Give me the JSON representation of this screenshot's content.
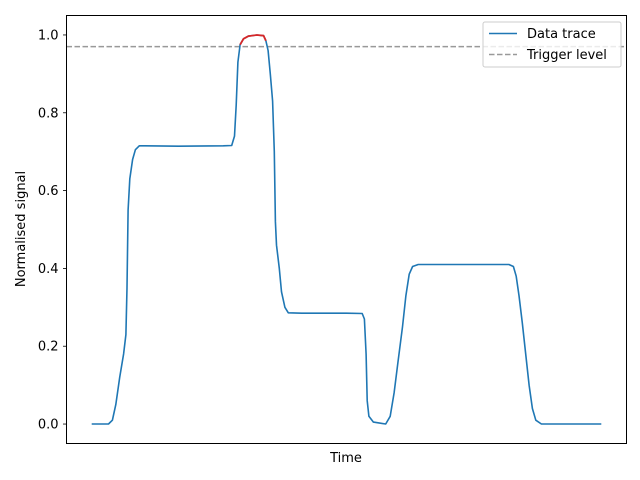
{
  "chart_data": {
    "type": "line",
    "xlabel": "Time",
    "ylabel": "Normalised signal",
    "xlim": [
      0,
      1
    ],
    "ylim": [
      -0.05,
      1.05
    ],
    "x_ticks_shown": false,
    "y_ticks": [
      0.0,
      0.2,
      0.4,
      0.6,
      0.8,
      1.0
    ],
    "y_tick_labels": [
      "0.0",
      "0.2",
      "0.4",
      "0.6",
      "0.8",
      "1.0"
    ],
    "grid": false,
    "legend_position": "top-right",
    "trigger_level": 0.97,
    "series": [
      {
        "name": "Data trace",
        "color": "#1f77b4",
        "points": [
          [
            0.045,
            0.0
          ],
          [
            0.075,
            0.0
          ],
          [
            0.082,
            0.01
          ],
          [
            0.088,
            0.05
          ],
          [
            0.095,
            0.12
          ],
          [
            0.102,
            0.18
          ],
          [
            0.106,
            0.23
          ],
          [
            0.108,
            0.35
          ],
          [
            0.11,
            0.55
          ],
          [
            0.113,
            0.63
          ],
          [
            0.118,
            0.68
          ],
          [
            0.123,
            0.705
          ],
          [
            0.13,
            0.715
          ],
          [
            0.14,
            0.715
          ],
          [
            0.2,
            0.714
          ],
          [
            0.28,
            0.715
          ],
          [
            0.295,
            0.716
          ],
          [
            0.3,
            0.74
          ],
          [
            0.303,
            0.82
          ],
          [
            0.306,
            0.93
          ],
          [
            0.31,
            0.975
          ],
          [
            0.316,
            0.99
          ],
          [
            0.325,
            0.997
          ],
          [
            0.34,
            1.0
          ],
          [
            0.352,
            0.998
          ],
          [
            0.356,
            0.985
          ],
          [
            0.36,
            0.96
          ],
          [
            0.364,
            0.9
          ],
          [
            0.368,
            0.83
          ],
          [
            0.371,
            0.7
          ],
          [
            0.373,
            0.52
          ],
          [
            0.375,
            0.46
          ],
          [
            0.38,
            0.4
          ],
          [
            0.384,
            0.34
          ],
          [
            0.39,
            0.3
          ],
          [
            0.396,
            0.286
          ],
          [
            0.42,
            0.285
          ],
          [
            0.5,
            0.285
          ],
          [
            0.528,
            0.284
          ],
          [
            0.532,
            0.27
          ],
          [
            0.535,
            0.18
          ],
          [
            0.537,
            0.06
          ],
          [
            0.54,
            0.02
          ],
          [
            0.548,
            0.005
          ],
          [
            0.57,
            0.0
          ],
          [
            0.578,
            0.02
          ],
          [
            0.585,
            0.08
          ],
          [
            0.592,
            0.16
          ],
          [
            0.6,
            0.25
          ],
          [
            0.606,
            0.33
          ],
          [
            0.612,
            0.385
          ],
          [
            0.618,
            0.405
          ],
          [
            0.628,
            0.41
          ],
          [
            0.7,
            0.41
          ],
          [
            0.79,
            0.41
          ],
          [
            0.798,
            0.405
          ],
          [
            0.803,
            0.38
          ],
          [
            0.808,
            0.33
          ],
          [
            0.814,
            0.26
          ],
          [
            0.82,
            0.18
          ],
          [
            0.826,
            0.1
          ],
          [
            0.832,
            0.04
          ],
          [
            0.838,
            0.01
          ],
          [
            0.848,
            0.0
          ],
          [
            0.955,
            0.0
          ]
        ]
      }
    ],
    "highlight": {
      "color": "#d62728",
      "points": [
        [
          0.31,
          0.975
        ],
        [
          0.316,
          0.99
        ],
        [
          0.325,
          0.997
        ],
        [
          0.34,
          1.0
        ],
        [
          0.352,
          0.998
        ],
        [
          0.356,
          0.985
        ]
      ]
    },
    "trigger_line": {
      "name": "Trigger level",
      "color": "#999999"
    }
  }
}
